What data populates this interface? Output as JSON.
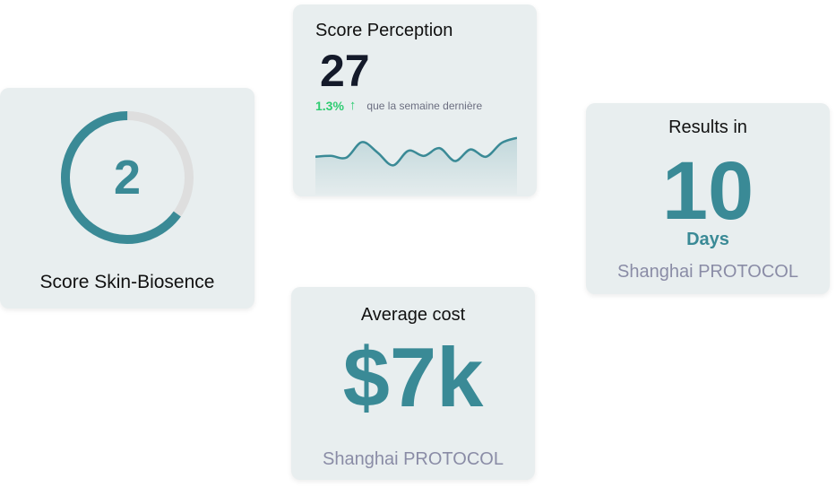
{
  "colors": {
    "card_bg": "#e8eeef",
    "accent": "#3a8a96",
    "track": "#dedede",
    "positive": "#2ecc71",
    "muted": "#8a8ca6",
    "dark": "#141a2a"
  },
  "skin": {
    "score": "2",
    "label": "Score Skin-Biosence",
    "ring_fraction": 0.65
  },
  "perception": {
    "title": "Score Perception",
    "value": "27",
    "change": "1.3%",
    "arrow_icon": "arrow-up-icon",
    "note": "que la semaine dernière",
    "sparkline": [
      0.38,
      0.4,
      0.36,
      0.72,
      0.48,
      0.18,
      0.52,
      0.4,
      0.58,
      0.28,
      0.55,
      0.38,
      0.7,
      0.82
    ]
  },
  "results": {
    "title": "Results in",
    "value": "10",
    "unit": "Days",
    "footer": "Shanghai PROTOCOL"
  },
  "cost": {
    "title": "Average cost",
    "value": "$7k",
    "footer": "Shanghai PROTOCOL"
  }
}
